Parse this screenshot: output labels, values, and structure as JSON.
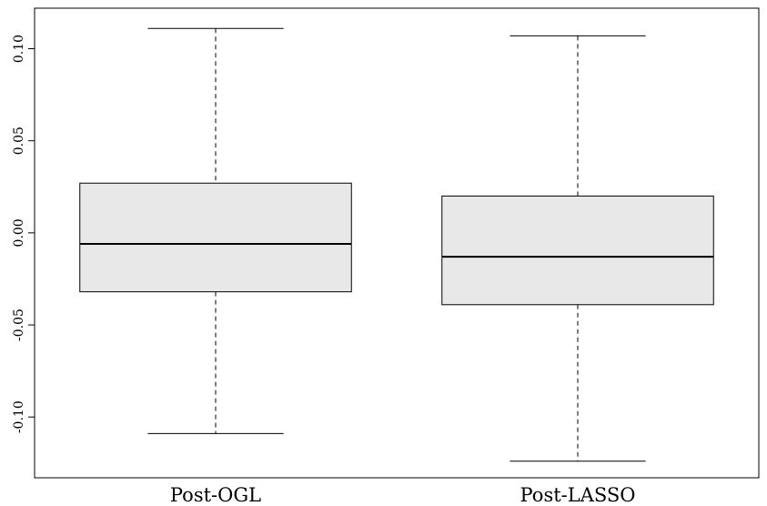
{
  "chart_data": {
    "type": "boxplot",
    "title": "",
    "xlabel": "",
    "ylabel": "",
    "ylim": [
      -0.133,
      0.122
    ],
    "y_ticks": [
      -0.1,
      -0.05,
      0.0,
      0.05,
      0.1
    ],
    "y_tick_labels": [
      "-0.10",
      "-0.05",
      "0.00",
      "0.05",
      "0.10"
    ],
    "categories": [
      "Post-OGL",
      "Post-LASSO"
    ],
    "boxes": [
      {
        "whisker_low": -0.109,
        "q1": -0.032,
        "median": -0.006,
        "q3": 0.027,
        "whisker_high": 0.111
      },
      {
        "whisker_low": -0.124,
        "q1": -0.039,
        "median": -0.013,
        "q3": 0.02,
        "whisker_high": 0.107
      }
    ],
    "box_fill": "#e8e8e8",
    "grid": false
  }
}
